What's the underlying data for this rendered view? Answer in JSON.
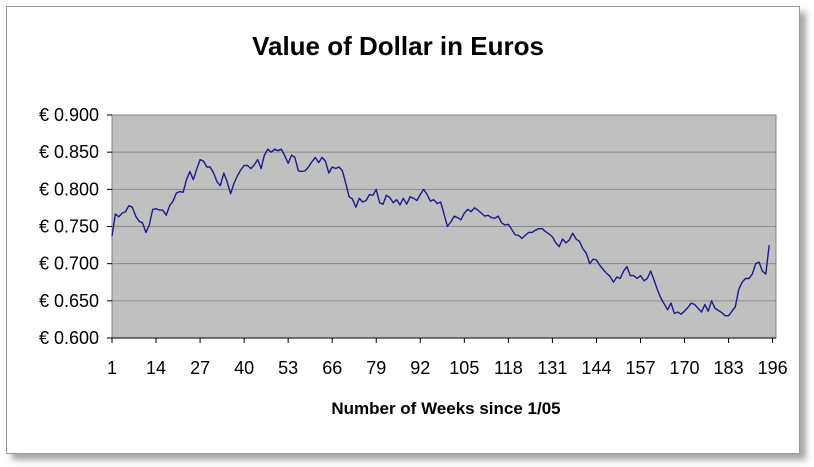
{
  "chart_data": {
    "type": "line",
    "title": "Value of Dollar in Euros",
    "xlabel": "Number of Weeks since 1/05",
    "ylabel": "",
    "xlim": [
      1,
      197
    ],
    "ylim": [
      0.6,
      0.9
    ],
    "x_ticks": [
      1,
      14,
      27,
      40,
      53,
      66,
      79,
      92,
      105,
      118,
      131,
      144,
      157,
      170,
      183,
      196
    ],
    "y_ticks": [
      "€ 0.900",
      "€ 0.850",
      "€ 0.800",
      "€ 0.750",
      "€ 0.700",
      "€ 0.650",
      "€ 0.600"
    ],
    "y_tick_values": [
      0.9,
      0.85,
      0.8,
      0.75,
      0.7,
      0.65,
      0.6
    ],
    "grid": true,
    "legend": "none",
    "series": [
      {
        "color": "#1a1a8c",
        "points": [
          [
            1,
            0.737
          ],
          [
            2,
            0.767
          ],
          [
            3,
            0.763
          ],
          [
            4,
            0.768
          ],
          [
            5,
            0.77
          ],
          [
            6,
            0.778
          ],
          [
            7,
            0.776
          ],
          [
            8,
            0.764
          ],
          [
            9,
            0.757
          ],
          [
            10,
            0.755
          ],
          [
            11,
            0.742
          ],
          [
            12,
            0.752
          ],
          [
            13,
            0.773
          ],
          [
            14,
            0.774
          ],
          [
            15,
            0.772
          ],
          [
            16,
            0.772
          ],
          [
            17,
            0.765
          ],
          [
            18,
            0.778
          ],
          [
            19,
            0.784
          ],
          [
            20,
            0.795
          ],
          [
            21,
            0.797
          ],
          [
            22,
            0.796
          ],
          [
            23,
            0.813
          ],
          [
            24,
            0.824
          ],
          [
            25,
            0.813
          ],
          [
            26,
            0.827
          ],
          [
            27,
            0.84
          ],
          [
            28,
            0.838
          ],
          [
            29,
            0.83
          ],
          [
            30,
            0.83
          ],
          [
            31,
            0.822
          ],
          [
            32,
            0.81
          ],
          [
            33,
            0.805
          ],
          [
            34,
            0.822
          ],
          [
            35,
            0.81
          ],
          [
            36,
            0.794
          ],
          [
            37,
            0.808
          ],
          [
            38,
            0.818
          ],
          [
            39,
            0.826
          ],
          [
            40,
            0.832
          ],
          [
            41,
            0.832
          ],
          [
            42,
            0.828
          ],
          [
            43,
            0.833
          ],
          [
            44,
            0.84
          ],
          [
            45,
            0.828
          ],
          [
            46,
            0.846
          ],
          [
            47,
            0.854
          ],
          [
            48,
            0.85
          ],
          [
            49,
            0.854
          ],
          [
            50,
            0.852
          ],
          [
            51,
            0.854
          ],
          [
            52,
            0.845
          ],
          [
            53,
            0.835
          ],
          [
            54,
            0.846
          ],
          [
            55,
            0.843
          ],
          [
            56,
            0.825
          ],
          [
            57,
            0.824
          ],
          [
            58,
            0.825
          ],
          [
            59,
            0.83
          ],
          [
            60,
            0.837
          ],
          [
            61,
            0.843
          ],
          [
            62,
            0.836
          ],
          [
            63,
            0.843
          ],
          [
            64,
            0.838
          ],
          [
            65,
            0.822
          ],
          [
            66,
            0.83
          ],
          [
            67,
            0.828
          ],
          [
            68,
            0.83
          ],
          [
            69,
            0.825
          ],
          [
            70,
            0.808
          ],
          [
            71,
            0.79
          ],
          [
            72,
            0.787
          ],
          [
            73,
            0.776
          ],
          [
            74,
            0.788
          ],
          [
            75,
            0.783
          ],
          [
            76,
            0.785
          ],
          [
            77,
            0.793
          ],
          [
            78,
            0.792
          ],
          [
            79,
            0.8
          ],
          [
            80,
            0.782
          ],
          [
            81,
            0.78
          ],
          [
            82,
            0.792
          ],
          [
            83,
            0.789
          ],
          [
            84,
            0.782
          ],
          [
            85,
            0.786
          ],
          [
            86,
            0.779
          ],
          [
            87,
            0.788
          ],
          [
            88,
            0.78
          ],
          [
            89,
            0.79
          ],
          [
            90,
            0.788
          ],
          [
            91,
            0.785
          ],
          [
            92,
            0.793
          ],
          [
            93,
            0.8
          ],
          [
            94,
            0.793
          ],
          [
            95,
            0.784
          ],
          [
            96,
            0.786
          ],
          [
            97,
            0.781
          ],
          [
            98,
            0.783
          ],
          [
            99,
            0.767
          ],
          [
            100,
            0.75
          ],
          [
            101,
            0.756
          ],
          [
            102,
            0.764
          ],
          [
            103,
            0.762
          ],
          [
            104,
            0.759
          ],
          [
            105,
            0.768
          ],
          [
            106,
            0.773
          ],
          [
            107,
            0.77
          ],
          [
            108,
            0.775
          ],
          [
            109,
            0.772
          ],
          [
            110,
            0.768
          ],
          [
            111,
            0.764
          ],
          [
            112,
            0.765
          ],
          [
            113,
            0.762
          ],
          [
            114,
            0.761
          ],
          [
            115,
            0.764
          ],
          [
            116,
            0.755
          ],
          [
            117,
            0.752
          ],
          [
            118,
            0.753
          ],
          [
            119,
            0.746
          ],
          [
            120,
            0.739
          ],
          [
            121,
            0.738
          ],
          [
            122,
            0.734
          ],
          [
            123,
            0.738
          ],
          [
            124,
            0.742
          ],
          [
            125,
            0.742
          ],
          [
            126,
            0.745
          ],
          [
            127,
            0.747
          ],
          [
            128,
            0.747
          ],
          [
            129,
            0.743
          ],
          [
            130,
            0.74
          ],
          [
            131,
            0.736
          ],
          [
            132,
            0.728
          ],
          [
            133,
            0.723
          ],
          [
            134,
            0.733
          ],
          [
            135,
            0.728
          ],
          [
            136,
            0.732
          ],
          [
            137,
            0.741
          ],
          [
            138,
            0.733
          ],
          [
            139,
            0.73
          ],
          [
            140,
            0.72
          ],
          [
            141,
            0.714
          ],
          [
            142,
            0.7
          ],
          [
            143,
            0.706
          ],
          [
            144,
            0.705
          ],
          [
            145,
            0.698
          ],
          [
            146,
            0.692
          ],
          [
            147,
            0.687
          ],
          [
            148,
            0.683
          ],
          [
            149,
            0.675
          ],
          [
            150,
            0.682
          ],
          [
            151,
            0.68
          ],
          [
            152,
            0.69
          ],
          [
            153,
            0.696
          ],
          [
            154,
            0.684
          ],
          [
            155,
            0.684
          ],
          [
            156,
            0.68
          ],
          [
            157,
            0.684
          ],
          [
            158,
            0.677
          ],
          [
            159,
            0.68
          ],
          [
            160,
            0.69
          ],
          [
            161,
            0.678
          ],
          [
            162,
            0.665
          ],
          [
            163,
            0.654
          ],
          [
            164,
            0.646
          ],
          [
            165,
            0.638
          ],
          [
            166,
            0.647
          ],
          [
            167,
            0.633
          ],
          [
            168,
            0.635
          ],
          [
            169,
            0.632
          ],
          [
            170,
            0.636
          ],
          [
            171,
            0.641
          ],
          [
            172,
            0.647
          ],
          [
            173,
            0.645
          ],
          [
            174,
            0.64
          ],
          [
            175,
            0.635
          ],
          [
            176,
            0.645
          ],
          [
            177,
            0.636
          ],
          [
            178,
            0.65
          ],
          [
            179,
            0.64
          ],
          [
            180,
            0.637
          ],
          [
            181,
            0.634
          ],
          [
            182,
            0.63
          ],
          [
            183,
            0.63
          ],
          [
            184,
            0.636
          ],
          [
            185,
            0.642
          ],
          [
            186,
            0.665
          ],
          [
            187,
            0.675
          ],
          [
            188,
            0.68
          ],
          [
            189,
            0.68
          ],
          [
            190,
            0.686
          ],
          [
            191,
            0.7
          ],
          [
            192,
            0.702
          ],
          [
            193,
            0.69
          ],
          [
            194,
            0.686
          ],
          [
            195,
            0.725
          ]
        ]
      }
    ],
    "plot_background": "#c0c0c0",
    "gridline_color": "#8a8a8a"
  }
}
